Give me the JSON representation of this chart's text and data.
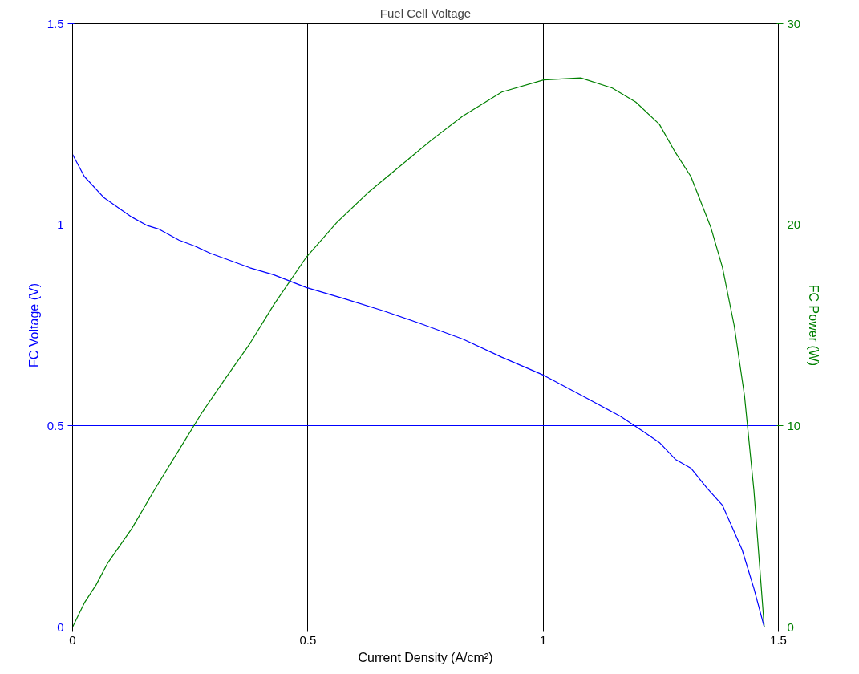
{
  "chart_data": {
    "type": "line",
    "title": "Fuel Cell Voltage",
    "xlabel": "Current Density (A/cm²)",
    "ylabel": "FC Voltage (V)",
    "y2label": "FC Power (W)",
    "xlim": [
      0,
      1.5
    ],
    "xticks": [
      0,
      0.5,
      1,
      1.5
    ],
    "ylim": [
      0,
      1.5
    ],
    "yticks": [
      0,
      0.5,
      1,
      1.5
    ],
    "y2lim": [
      0,
      30
    ],
    "y2ticks": [
      0,
      10,
      20,
      30
    ],
    "grid": true,
    "series": [
      {
        "color": "#0000ff",
        "x": [
          0,
          0.025,
          0.067,
          0.126,
          0.159,
          0.184,
          0.226,
          0.26,
          0.293,
          0.326,
          0.377,
          0.427,
          0.497,
          0.578,
          0.661,
          0.745,
          0.829,
          0.912,
          1.001,
          1.08,
          1.164,
          1.214,
          1.247,
          1.281,
          1.314,
          1.348,
          1.381,
          1.423,
          1.448,
          1.47
        ],
        "values": [
          1.175,
          1.12,
          1.067,
          1.019,
          0.998,
          0.989,
          0.962,
          0.947,
          0.929,
          0.915,
          0.893,
          0.876,
          0.844,
          0.816,
          0.786,
          0.752,
          0.716,
          0.671,
          0.626,
          0.577,
          0.524,
          0.485,
          0.459,
          0.417,
          0.395,
          0.346,
          0.303,
          0.192,
          0.096,
          0
        ]
      },
      {
        "color": "#008000",
        "axis": "y2",
        "x": [
          0,
          0.025,
          0.05,
          0.075,
          0.126,
          0.176,
          0.226,
          0.276,
          0.326,
          0.377,
          0.427,
          0.497,
          0.561,
          0.628,
          0.695,
          0.762,
          0.829,
          0.912,
          1.001,
          1.08,
          1.147,
          1.197,
          1.247,
          1.281,
          1.314,
          1.356,
          1.381,
          1.406,
          1.428,
          1.448,
          1.47
        ],
        "values": [
          0,
          1.2,
          2.1,
          3.2,
          4.9,
          6.9,
          8.8,
          10.7,
          12.4,
          14.1,
          16.0,
          18.4,
          20.1,
          21.6,
          22.9,
          24.2,
          25.4,
          26.6,
          27.2,
          27.3,
          26.8,
          26.1,
          25.0,
          23.6,
          22.4,
          19.9,
          17.9,
          15.0,
          11.5,
          6.8,
          0
        ]
      }
    ]
  }
}
